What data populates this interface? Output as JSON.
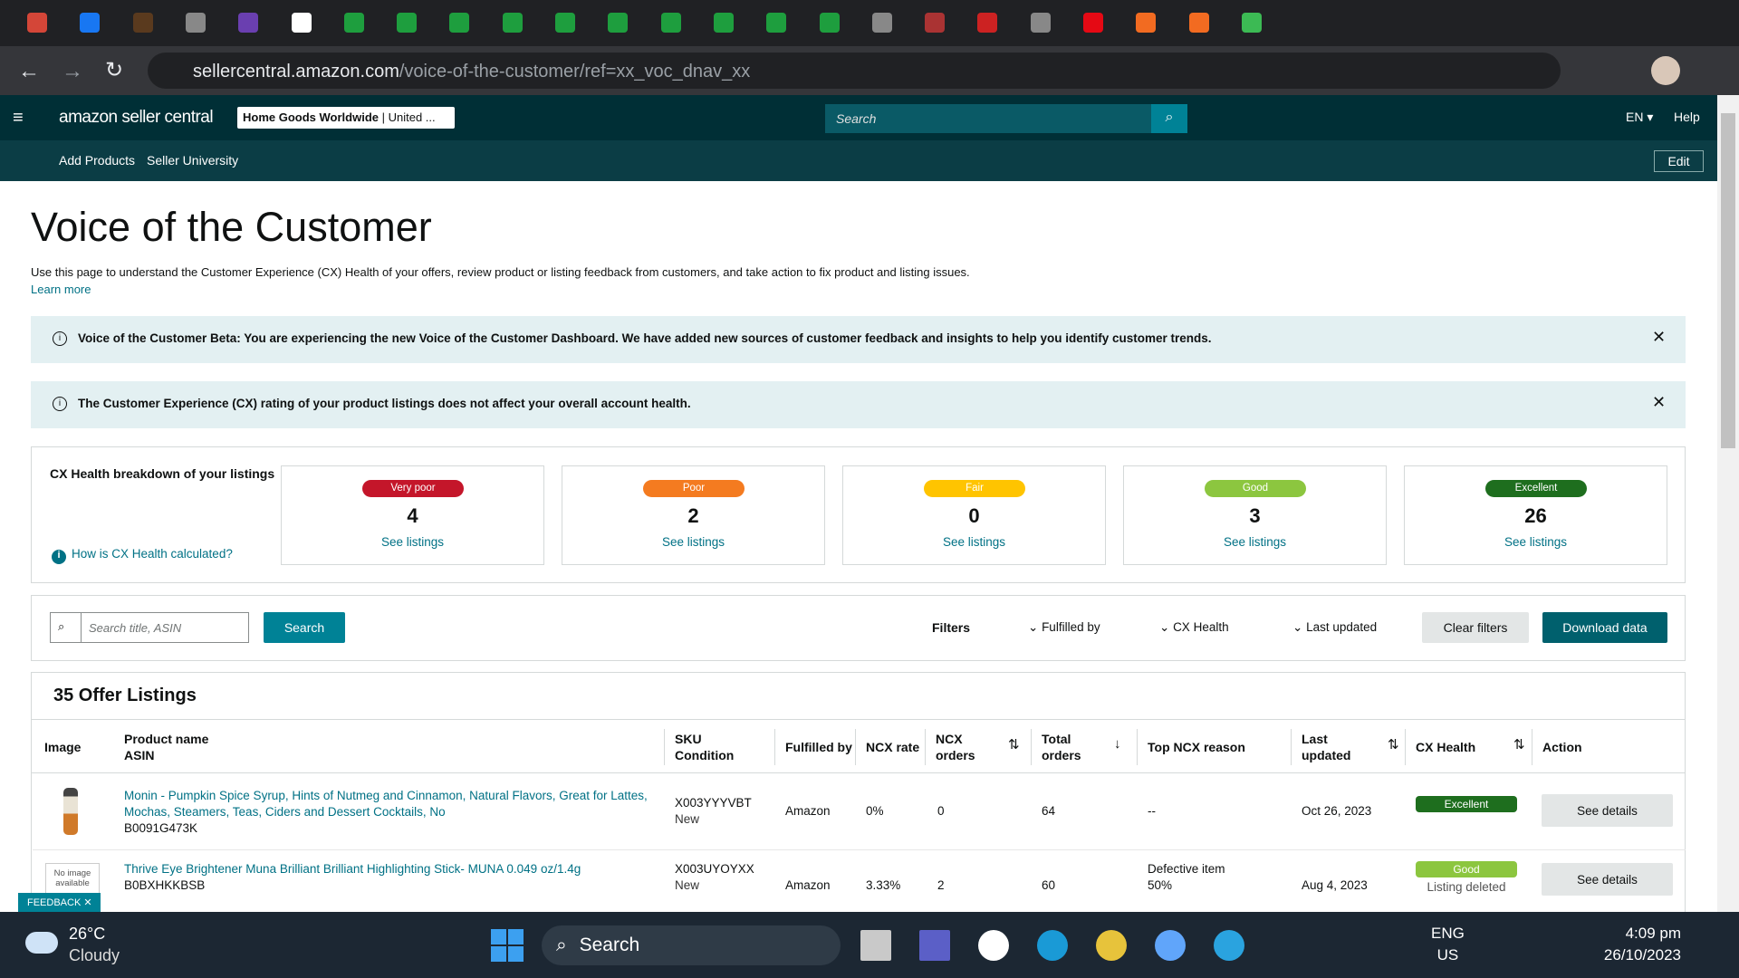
{
  "browser": {
    "url_host": "sellercentral.amazon.com",
    "url_path": "/voice-of-the-customer/ref=xx_voc_dnav_xx"
  },
  "header": {
    "logo": "amazon seller central",
    "store": "Home Goods Worldwide",
    "store_region": "| United ...",
    "search_placeholder": "Search",
    "language": "EN",
    "help": "Help"
  },
  "subnav": {
    "items": [
      "Add Products",
      "Seller University"
    ],
    "edit": "Edit"
  },
  "page": {
    "title": "Voice of the Customer",
    "description": "Use this page to understand the Customer Experience (CX) Health of your offers, review product or listing feedback from customers, and take action to fix product and listing issues.",
    "learn_more": "Learn more"
  },
  "banners": [
    "Voice of the Customer Beta: You are experiencing the new Voice of the Customer Dashboard. We have added new sources of customer feedback and insights to help you identify customer trends.",
    "The Customer Experience (CX) rating of your product listings does not affect your overall account health."
  ],
  "cx_health": {
    "title": "CX Health breakdown of your listings",
    "help_link": "How is CX Health calculated?",
    "cards": [
      {
        "label": "Very poor",
        "count": 4,
        "link": "See listings",
        "color": "#c4162a"
      },
      {
        "label": "Poor",
        "count": 2,
        "link": "See listings",
        "color": "#f47b20"
      },
      {
        "label": "Fair",
        "count": 0,
        "link": "See listings",
        "color": "#ffc400"
      },
      {
        "label": "Good",
        "count": 3,
        "link": "See listings",
        "color": "#8cc63f"
      },
      {
        "label": "Excellent",
        "count": 26,
        "link": "See listings",
        "color": "#1e6e1e"
      }
    ]
  },
  "filters": {
    "search_placeholder": "Search title, ASIN",
    "search_button": "Search",
    "filters_label": "Filters",
    "dropdowns": [
      "Fulfilled by",
      "CX Health",
      "Last updated"
    ],
    "clear": "Clear filters",
    "download": "Download data"
  },
  "listings": {
    "title": "35 Offer Listings",
    "columns": [
      [
        "Image"
      ],
      [
        "Product name",
        "ASIN"
      ],
      [
        "SKU",
        "Condition"
      ],
      [
        "Fulfilled by"
      ],
      [
        "NCX rate"
      ],
      [
        "NCX",
        "orders"
      ],
      [
        "Total",
        "orders"
      ],
      [
        "Top NCX reason"
      ],
      [
        "Last",
        "updated"
      ],
      [
        "CX Health"
      ],
      [
        "Action"
      ]
    ],
    "rows": [
      {
        "name": "Monin - Pumpkin Spice Syrup, Hints of Nutmeg and Cinnamon, Natural Flavors, Great for Lattes, Mochas, Steamers, Teas, Ciders and Dessert Cocktails, No",
        "asin": "B0091G473K",
        "sku": "X003YYYVBT",
        "condition": "New",
        "fulfilled": "Amazon",
        "ncx_rate": "0%",
        "ncx_orders": 0,
        "total_orders": 64,
        "reason": "--",
        "updated": "Oct 26, 2023",
        "health": "Excellent",
        "health_color": "#1e6e1e",
        "action": "See details"
      },
      {
        "image_text": "No image available",
        "name": "Thrive Eye Brightener Muna Brilliant Brilliant Highlighting Stick- MUNA 0.049 oz/1.4g",
        "asin": "B0BXHKKBSB",
        "sku": "X003UYOYXX",
        "condition": "New",
        "fulfilled": "Amazon",
        "ncx_rate": "3.33%",
        "ncx_orders": 2,
        "total_orders": 60,
        "reason": "Defective item",
        "reason_share": "50%",
        "updated": "Aug 4, 2023",
        "health": "Good",
        "health_color": "#8cc63f",
        "health_note": "Listing deleted",
        "action": "See details"
      }
    ]
  },
  "feedback": "FEEDBACK",
  "taskbar": {
    "temperature": "26°C",
    "weather": "Cloudy",
    "search": "Search",
    "language": "ENG",
    "region": "US",
    "time": "4:09 pm",
    "date": "26/10/2023"
  }
}
